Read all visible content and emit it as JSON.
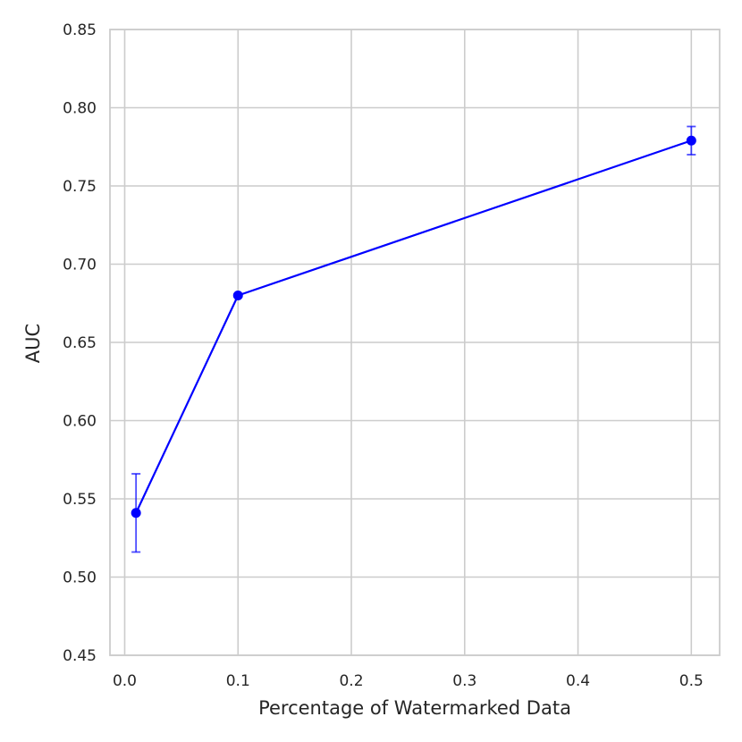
{
  "chart_data": {
    "type": "line",
    "title": "",
    "xlabel": "Percentage of Watermarked Data",
    "ylabel": "AUC",
    "xlim": [
      -0.013,
      0.525
    ],
    "ylim": [
      0.45,
      0.85
    ],
    "xticks": [
      0.0,
      0.1,
      0.2,
      0.3,
      0.4,
      0.5
    ],
    "xtick_labels": [
      "0.0",
      "0.1",
      "0.2",
      "0.3",
      "0.4",
      "0.5"
    ],
    "yticks": [
      0.45,
      0.5,
      0.55,
      0.6,
      0.65,
      0.7,
      0.75,
      0.8,
      0.85
    ],
    "ytick_labels": [
      "0.45",
      "0.50",
      "0.55",
      "0.60",
      "0.65",
      "0.70",
      "0.75",
      "0.80",
      "0.85"
    ],
    "grid": true,
    "series": [
      {
        "x": [
          0.01,
          0.1,
          0.5
        ],
        "y": [
          0.541,
          0.68,
          0.779
        ],
        "yerr_low": [
          0.516,
          0.679,
          0.77
        ],
        "yerr_high": [
          0.566,
          0.681,
          0.788
        ],
        "color": "#0000ff",
        "marker": "circle"
      }
    ]
  }
}
